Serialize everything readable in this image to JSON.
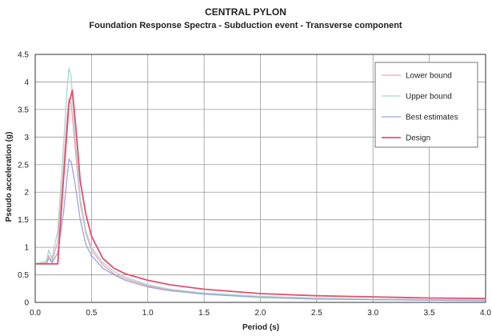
{
  "chart_data": {
    "type": "line",
    "title": "CENTRAL PYLON",
    "subtitle": "Foundation Response Spectra - Subduction event - Transverse component",
    "xlabel": "Period (s)",
    "ylabel": "Pseudo acceleration (g)",
    "xlim": [
      0.0,
      4.0
    ],
    "ylim": [
      0,
      4.5
    ],
    "xticks": [
      "0.0",
      "0.5",
      "1.0",
      "1.5",
      "2.0",
      "2.5",
      "3.0",
      "3.5",
      "4.0"
    ],
    "yticks": [
      "0",
      "0.5",
      "1",
      "1.5",
      "2",
      "2.5",
      "3",
      "3.5",
      "4",
      "4.5"
    ],
    "grid": true,
    "legend_position": "top-right",
    "series": [
      {
        "name": "Lower bound",
        "color": "#f2a3b3",
        "x": [
          0.0,
          0.1,
          0.12,
          0.15,
          0.2,
          0.25,
          0.28,
          0.3,
          0.32,
          0.35,
          0.4,
          0.45,
          0.5,
          0.6,
          0.7,
          0.8,
          1.0,
          1.2,
          1.5,
          2.0,
          2.5,
          3.0,
          3.5,
          4.0
        ],
        "y": [
          0.7,
          0.72,
          0.85,
          0.75,
          1.1,
          2.4,
          3.3,
          3.7,
          3.6,
          2.9,
          1.8,
          1.25,
          0.95,
          0.68,
          0.52,
          0.43,
          0.3,
          0.22,
          0.16,
          0.1,
          0.07,
          0.05,
          0.04,
          0.03
        ]
      },
      {
        "name": "Upper bound",
        "color": "#a8d8cf",
        "x": [
          0.0,
          0.1,
          0.12,
          0.15,
          0.2,
          0.25,
          0.28,
          0.3,
          0.32,
          0.35,
          0.4,
          0.45,
          0.5,
          0.6,
          0.7,
          0.8,
          1.0,
          1.2,
          1.5,
          2.0,
          2.5,
          3.0,
          3.5,
          4.0
        ],
        "y": [
          0.7,
          0.75,
          0.95,
          0.8,
          1.3,
          2.8,
          3.8,
          4.25,
          4.1,
          3.1,
          1.9,
          1.3,
          1.0,
          0.72,
          0.56,
          0.46,
          0.32,
          0.24,
          0.17,
          0.11,
          0.08,
          0.06,
          0.05,
          0.04
        ]
      },
      {
        "name": "Best estimates",
        "color": "#9aa6d6",
        "x": [
          0.0,
          0.1,
          0.12,
          0.15,
          0.2,
          0.25,
          0.28,
          0.3,
          0.32,
          0.35,
          0.4,
          0.45,
          0.5,
          0.6,
          0.7,
          0.8,
          1.0,
          1.2,
          1.5,
          2.0,
          2.5,
          3.0,
          3.5,
          4.0
        ],
        "y": [
          0.7,
          0.7,
          0.8,
          0.72,
          0.9,
          1.6,
          2.2,
          2.6,
          2.55,
          2.2,
          1.5,
          1.05,
          0.85,
          0.62,
          0.5,
          0.4,
          0.28,
          0.21,
          0.15,
          0.09,
          0.06,
          0.05,
          0.04,
          0.03
        ]
      },
      {
        "name": "Design",
        "color": "#e0506e",
        "x": [
          0.0,
          0.2,
          0.25,
          0.3,
          0.33,
          0.36,
          0.4,
          0.45,
          0.5,
          0.6,
          0.7,
          0.8,
          1.0,
          1.2,
          1.5,
          2.0,
          2.5,
          3.0,
          3.5,
          4.0
        ],
        "y": [
          0.7,
          0.7,
          2.2,
          3.6,
          3.85,
          3.2,
          2.2,
          1.6,
          1.2,
          0.8,
          0.62,
          0.52,
          0.4,
          0.32,
          0.24,
          0.16,
          0.12,
          0.1,
          0.08,
          0.07
        ]
      }
    ]
  }
}
